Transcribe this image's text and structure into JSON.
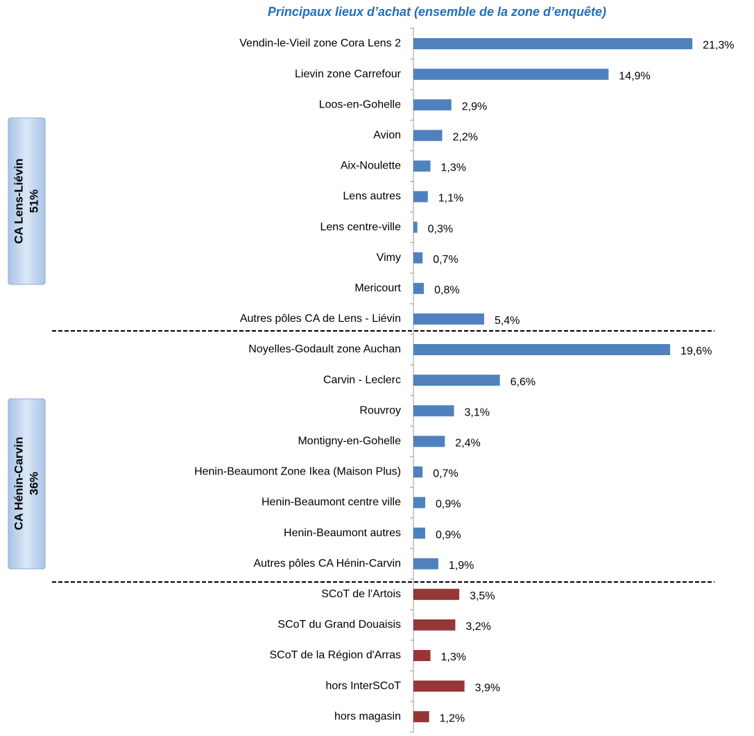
{
  "chart_data": {
    "type": "hbar",
    "title": "Principaux lieux d’achat (ensemble de la zone d’enquête)",
    "annotations": [
      "CA Lens-Liévin",
      "51%",
      "CA Hénin-Carvin",
      "36%"
    ],
    "categories": [
      "Vendin-le-Vieil zone Cora Lens 2",
      "Lievin zone Carrefour",
      "Loos-en-Gohelle",
      "Avion",
      "Aix-Noulette",
      "Lens autres",
      "Lens centre-ville",
      "Vimy",
      "Mericourt",
      "Autres pôles CA de Lens - Liévin",
      "Noyelles-Godault zone Auchan",
      "Carvin - Leclerc",
      "Rouvroy",
      "Montigny-en-Gohelle",
      "Henin-Beaumont Zone Ikea (Maison Plus)",
      "Henin-Beaumont centre ville",
      "Henin-Beaumont autres",
      "Autres pôles CA Hénin-Carvin",
      "SCoT de l'Artois",
      "SCoT du Grand Douaisis",
      "SCoT de la Région d'Arras",
      "hors InterSCoT",
      "hors magasin"
    ],
    "values": [
      21.3,
      14.9,
      2.9,
      2.2,
      1.3,
      1.1,
      0.3,
      0.7,
      0.8,
      5.4,
      19.6,
      6.6,
      3.1,
      2.4,
      0.7,
      0.9,
      0.9,
      1.9,
      3.5,
      3.2,
      1.3,
      3.9,
      1.2
    ],
    "value_labels": [
      "21,3%",
      "14,9%",
      "2,9%",
      "2,2%",
      "1,3%",
      "1,1%",
      "0,3%",
      "0,7%",
      "0,8%",
      "5,4%",
      "19,6%",
      "6,6%",
      "3,1%",
      "2,4%",
      "0,7%",
      "0,9%",
      "0,9%",
      "1,9%",
      "3,5%",
      "3,2%",
      "1,3%",
      "3,9%",
      "1,2%"
    ],
    "colors": [
      "#4f81bd",
      "#4f81bd",
      "#4f81bd",
      "#4f81bd",
      "#4f81bd",
      "#4f81bd",
      "#4f81bd",
      "#4f81bd",
      "#4f81bd",
      "#4f81bd",
      "#4f81bd",
      "#4f81bd",
      "#4f81bd",
      "#4f81bd",
      "#4f81bd",
      "#4f81bd",
      "#4f81bd",
      "#4f81bd",
      "#953735",
      "#953735",
      "#953735",
      "#953735",
      "#953735"
    ],
    "xlim": [
      0,
      25
    ]
  }
}
